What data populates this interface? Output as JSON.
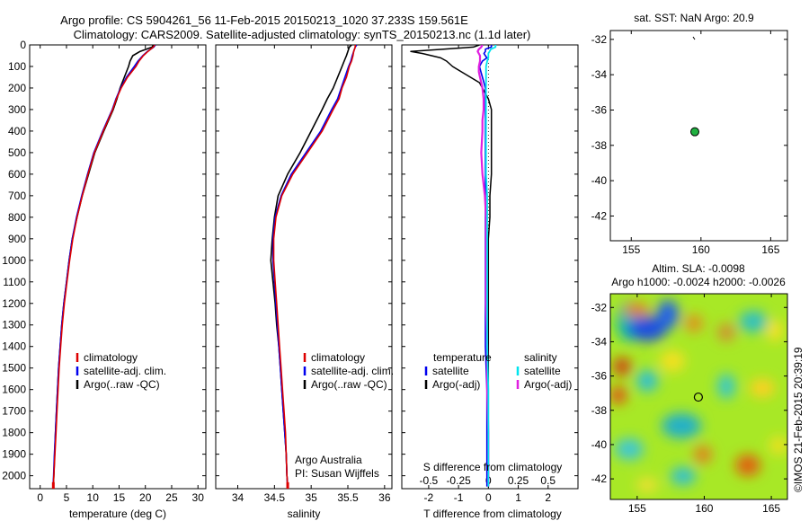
{
  "title_line1": "Argo profile: CS 5904261_56 11-Feb-2015 20150213_1020 37.233S 159.561E",
  "title_line2": "Climatology: CARS2009. Satellite-adjusted climatology: synTS_20150213.nc (1.1d later)",
  "credit": "©IMOS 21-Feb-2015 20:39:19",
  "colors": {
    "climatology": "#dd0000",
    "satellite": "#0000ee",
    "argo": "#000000",
    "s_satellite": "#00e5ee",
    "s_argo": "#e020e0"
  },
  "chart_data": [
    {
      "type": "line",
      "id": "temperature",
      "xlabel": "temperature (deg C)",
      "xlim": [
        -2,
        31.5
      ],
      "xticks": [
        "0",
        "5",
        "10",
        "15",
        "20",
        "25",
        "30"
      ],
      "xtick_values": [
        0,
        5,
        10,
        15,
        20,
        25,
        30
      ],
      "ylim": [
        2060,
        0
      ],
      "yticks": [
        "0",
        "100",
        "200",
        "300",
        "400",
        "500",
        "600",
        "700",
        "800",
        "900",
        "1000",
        "1100",
        "1200",
        "1300",
        "1400",
        "1500",
        "1600",
        "1700",
        "1800",
        "1900",
        "2000"
      ],
      "ytick_values": [
        0,
        100,
        200,
        300,
        400,
        500,
        600,
        700,
        800,
        900,
        1000,
        1100,
        1200,
        1300,
        1400,
        1500,
        1600,
        1700,
        1800,
        1900,
        2000
      ],
      "legend": [
        "climatology",
        "satellite-adj. clim.",
        "Argo(..raw -QC)"
      ],
      "depth": [
        0,
        10,
        30,
        50,
        75,
        100,
        150,
        200,
        250,
        300,
        400,
        500,
        600,
        700,
        800,
        900,
        1000,
        1100,
        1200,
        1300,
        1400,
        1500,
        1600,
        1700,
        1800,
        1900,
        2000,
        2050
      ],
      "series": [
        {
          "name": "climatology",
          "values": [
            21.8,
            21.5,
            20.5,
            19.6,
            18.8,
            18.2,
            16.6,
            15.4,
            14.5,
            13.8,
            12.0,
            10.3,
            9.1,
            8.0,
            7.0,
            6.2,
            5.6,
            5.1,
            4.6,
            4.2,
            3.9,
            3.6,
            3.4,
            3.2,
            3.0,
            2.8,
            2.6,
            2.5
          ]
        },
        {
          "name": "satellite-adj. clim.",
          "values": [
            21.9,
            21.6,
            20.4,
            19.5,
            18.6,
            17.9,
            16.4,
            15.3,
            14.4,
            13.7,
            11.9,
            10.2,
            9.0,
            7.9,
            6.9,
            6.1,
            5.5,
            5.0,
            4.5,
            4.1,
            3.8,
            3.5,
            3.3,
            3.1,
            2.9,
            2.7,
            2.55,
            2.45
          ]
        },
        {
          "name": "Argo(..raw -QC)",
          "values": [
            21.5,
            21.3,
            19.0,
            17.6,
            17.1,
            16.8,
            16.0,
            15.2,
            14.6,
            13.9,
            12.1,
            10.4,
            9.2,
            8.0,
            7.0,
            6.1,
            5.5,
            5.0,
            4.5,
            4.1,
            3.8,
            3.5,
            3.3,
            3.1,
            2.9,
            2.75,
            2.6,
            2.5
          ]
        }
      ]
    },
    {
      "type": "line",
      "id": "salinity",
      "xlabel": "salinity",
      "xlim": [
        33.7,
        36.1
      ],
      "xticks": [
        "34",
        "34.5",
        "35",
        "35.5",
        "36"
      ],
      "xtick_values": [
        34,
        34.5,
        35,
        35.5,
        36
      ],
      "legend": [
        "climatology",
        "satellite-adj. clim.",
        "Argo(..raw -QC)"
      ],
      "annotation_line1": "Argo Australia",
      "annotation_line2": "PI: Susan Wijffels",
      "depth": [
        0,
        10,
        30,
        50,
        75,
        100,
        150,
        200,
        250,
        300,
        400,
        500,
        600,
        700,
        800,
        900,
        1000,
        1100,
        1200,
        1300,
        1400,
        1500,
        1600,
        1700,
        1800,
        1900,
        2000,
        2050
      ],
      "series": [
        {
          "name": "climatology",
          "values": [
            35.6,
            35.6,
            35.58,
            35.57,
            35.55,
            35.52,
            35.48,
            35.42,
            35.38,
            35.3,
            35.15,
            34.95,
            34.75,
            34.6,
            34.52,
            34.49,
            34.49,
            34.51,
            34.53,
            34.55,
            34.57,
            34.59,
            34.61,
            34.63,
            34.65,
            34.66,
            34.67,
            34.68
          ]
        },
        {
          "name": "satellite-adj. clim.",
          "values": [
            35.62,
            35.6,
            35.58,
            35.56,
            35.54,
            35.51,
            35.46,
            35.41,
            35.36,
            35.28,
            35.13,
            34.93,
            34.73,
            34.59,
            34.51,
            34.48,
            34.48,
            34.5,
            34.52,
            34.54,
            34.56,
            34.58,
            34.6,
            34.62,
            34.64,
            34.66,
            34.67,
            34.68
          ]
        },
        {
          "name": "Argo(..raw -QC)",
          "values": [
            35.55,
            35.52,
            35.5,
            35.48,
            35.45,
            35.42,
            35.36,
            35.3,
            35.22,
            35.15,
            35.0,
            34.85,
            34.68,
            34.55,
            34.5,
            34.47,
            34.45,
            34.48,
            34.51,
            34.53,
            34.56,
            34.58,
            34.6,
            34.62,
            34.64,
            34.66,
            34.67,
            34.68
          ]
        }
      ]
    },
    {
      "type": "line",
      "id": "difference",
      "xlabel": "T difference from climatology",
      "xlabel_top": "S difference from climatology",
      "xlim": [
        -2.9,
        3.0
      ],
      "xticks_t": [
        "-2",
        "-1",
        "0",
        "1",
        "2"
      ],
      "xtick_values_t": [
        -2,
        -1,
        0,
        1,
        2
      ],
      "xticks_s": [
        "-0.5",
        "-0.25",
        "0",
        "0.25",
        "0.5"
      ],
      "xtick_values_s": [
        -0.5,
        -0.25,
        0,
        0.25,
        0.5
      ],
      "s_scale": 0.25,
      "legend_t_title": "temperature",
      "legend_s_title": "salinity",
      "legend_t": [
        "satellite",
        "Argo(-adj)"
      ],
      "legend_s": [
        "satellite",
        "Argo(-adj)"
      ],
      "depth": [
        0,
        10,
        20,
        30,
        40,
        50,
        60,
        75,
        100,
        125,
        150,
        175,
        200,
        250,
        300,
        350,
        400,
        500,
        600,
        700,
        800,
        900,
        1000,
        1200,
        1400,
        1600,
        1800,
        2000,
        2050
      ],
      "series": [
        {
          "name": "T satellite",
          "values": [
            0.1,
            0.1,
            -0.1,
            -0.1,
            -0.15,
            -0.1,
            -0.05,
            -0.2,
            -0.3,
            -0.25,
            -0.2,
            -0.15,
            -0.1,
            -0.1,
            -0.1,
            -0.1,
            -0.1,
            -0.1,
            -0.1,
            -0.1,
            -0.1,
            -0.1,
            -0.1,
            -0.1,
            -0.1,
            -0.05,
            -0.05,
            -0.05,
            -0.05
          ]
        },
        {
          "name": "T Argo(-adj)",
          "values": [
            -0.3,
            -0.5,
            -1.5,
            -2.6,
            -2.2,
            -1.9,
            -1.6,
            -1.4,
            -1.2,
            -0.9,
            -0.6,
            -0.3,
            -0.2,
            0.0,
            0.1,
            0.1,
            0.1,
            0.1,
            0.1,
            0.05,
            0.05,
            0.0,
            0.0,
            0.0,
            0.0,
            0.0,
            0.0,
            0.0,
            0.0
          ]
        },
        {
          "name": "S satellite",
          "values": [
            0.06,
            0.06,
            0.02,
            0.01,
            0.0,
            0.0,
            0.0,
            -0.01,
            -0.02,
            -0.02,
            -0.02,
            -0.02,
            -0.02,
            -0.02,
            -0.02,
            -0.02,
            -0.02,
            -0.02,
            -0.02,
            -0.01,
            -0.01,
            -0.01,
            -0.01,
            -0.01,
            -0.01,
            0.0,
            0.0,
            0.0,
            0.0
          ]
        },
        {
          "name": "S Argo(-adj)",
          "values": [
            -0.05,
            -0.06,
            -0.08,
            -0.09,
            -0.08,
            -0.07,
            -0.07,
            -0.07,
            -0.08,
            -0.08,
            -0.07,
            -0.06,
            -0.05,
            -0.04,
            -0.04,
            -0.05,
            -0.05,
            -0.06,
            -0.05,
            -0.03,
            -0.02,
            -0.02,
            -0.02,
            -0.02,
            -0.01,
            -0.01,
            0.0,
            0.0,
            0.0
          ]
        }
      ]
    },
    {
      "type": "scatter",
      "id": "sst_map",
      "title": "sat. SST: NaN Argo: 20.9",
      "xlim": [
        153.5,
        166.2
      ],
      "ylim": [
        -43.4,
        -31.5
      ],
      "xticks": [
        "155",
        "160",
        "165"
      ],
      "xtick_values": [
        155,
        160,
        165
      ],
      "yticks": [
        "-32",
        "-34",
        "-36",
        "-38",
        "-40",
        "-42"
      ],
      "ytick_values": [
        -32,
        -34,
        -36,
        -38,
        -40,
        -42
      ],
      "point": {
        "lon": 159.56,
        "lat": -37.23
      }
    },
    {
      "type": "heatmap",
      "id": "sla_map",
      "title_line1": "Altim. SLA: -0.0098",
      "title_line2": "Argo h1000: -0.0024 h2000: -0.0026",
      "xlim": [
        153.0,
        166.2
      ],
      "ylim": [
        -43.2,
        -31.2
      ],
      "xticks": [
        "155",
        "160",
        "165"
      ],
      "xtick_values": [
        155,
        160,
        165
      ],
      "yticks": [
        "-32",
        "-34",
        "-36",
        "-38",
        "-40",
        "-42"
      ],
      "ytick_values": [
        -32,
        -34,
        -36,
        -38,
        -40,
        -42
      ],
      "point": {
        "lon": 159.56,
        "lat": -37.23
      }
    }
  ]
}
